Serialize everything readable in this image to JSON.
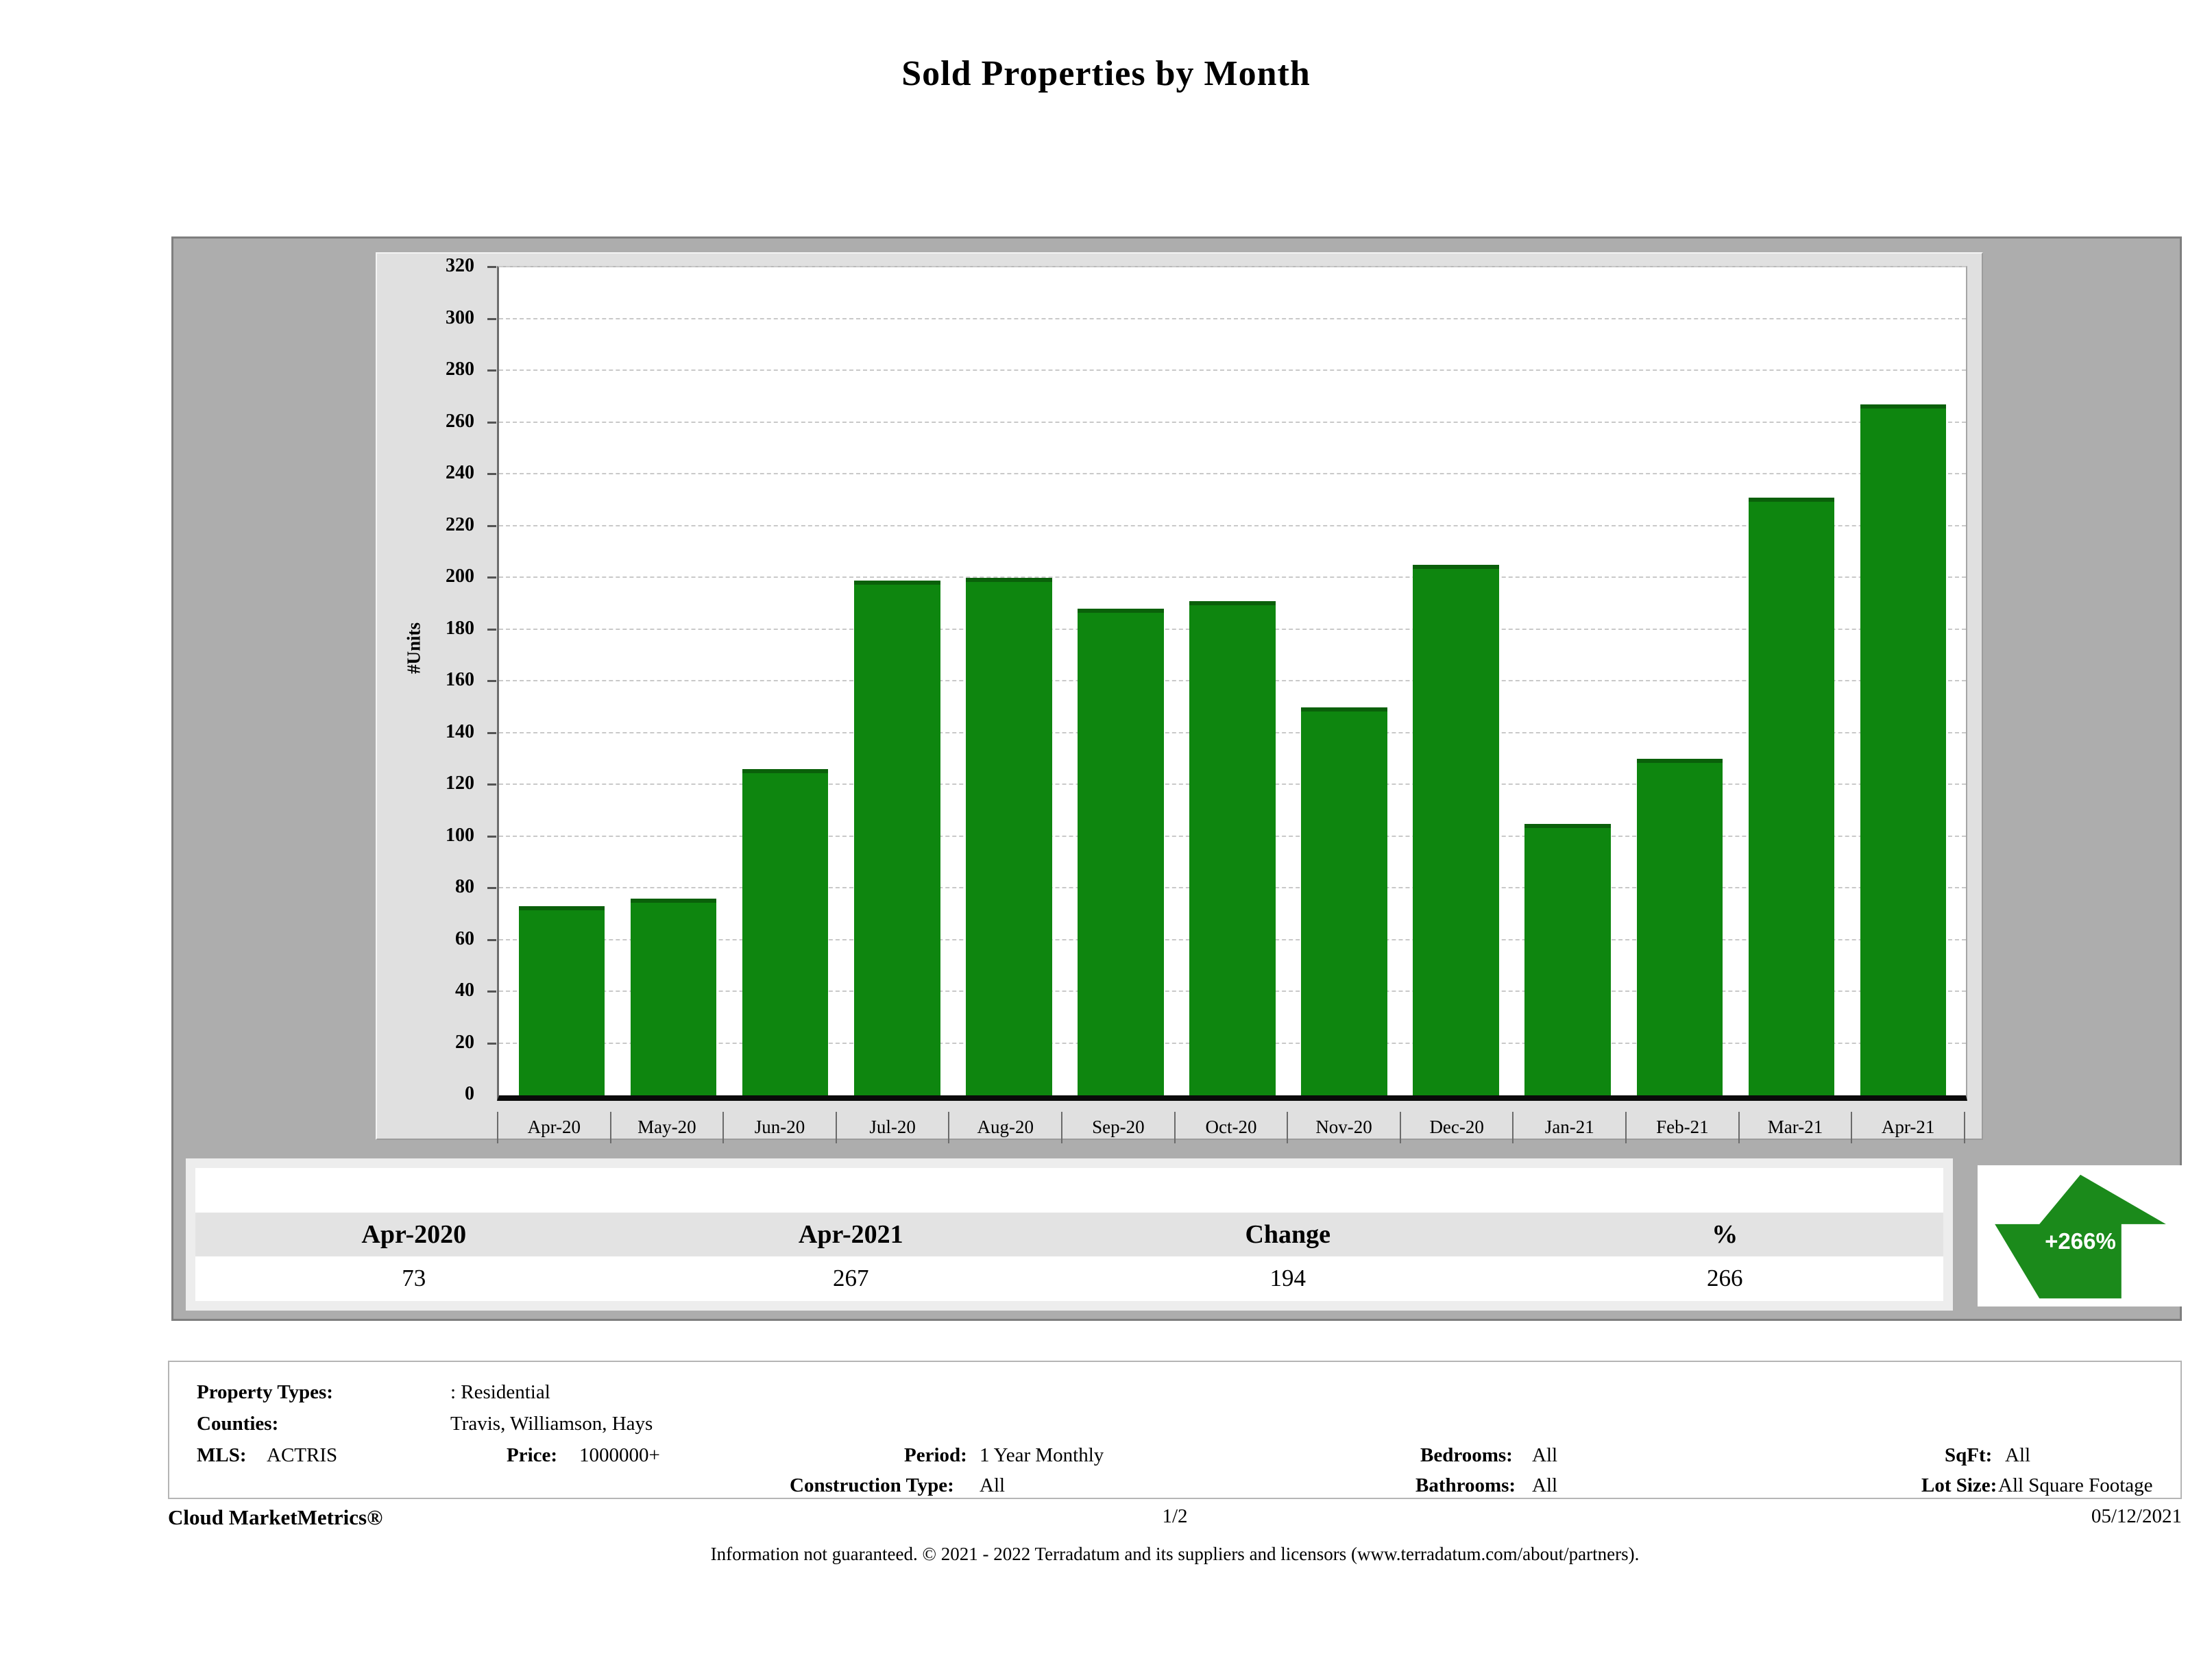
{
  "title": "Sold Properties by Month",
  "chart_data": {
    "type": "bar",
    "title": "Sold Properties by Month",
    "categories": [
      "Apr-20",
      "May-20",
      "Jun-20",
      "Jul-20",
      "Aug-20",
      "Sep-20",
      "Oct-20",
      "Nov-20",
      "Dec-20",
      "Jan-21",
      "Feb-21",
      "Mar-21",
      "Apr-21"
    ],
    "values": [
      73,
      76,
      126,
      199,
      200,
      188,
      191,
      150,
      205,
      105,
      130,
      231,
      267
    ],
    "xlabel": "",
    "ylabel": "#Units",
    "ylim": [
      0,
      320
    ],
    "yticks": [
      0,
      20,
      40,
      60,
      80,
      100,
      120,
      140,
      160,
      180,
      200,
      220,
      240,
      260,
      280,
      300,
      320
    ],
    "grid": true,
    "legend": "none",
    "bar_color": "#0e860f"
  },
  "summary_table": {
    "columns": [
      "Apr-2020",
      "Apr-2021",
      "Change",
      "%"
    ],
    "values": [
      "73",
      "267",
      "194",
      "266"
    ]
  },
  "change_indicator": {
    "label": "+266%",
    "direction": "up",
    "color": "#1b8a1b"
  },
  "filters": {
    "property_types_label": "Property Types:",
    "property_types": ": Residential",
    "counties_label": "Counties:",
    "counties": "Travis, Williamson, Hays",
    "mls_label": "MLS:",
    "mls": "ACTRIS",
    "price_label": "Price:",
    "price": "1000000+",
    "period_label": "Period:",
    "period": "1 Year Monthly",
    "construction_label": "Construction Type:",
    "construction": "All",
    "bedrooms_label": "Bedrooms:",
    "bedrooms": "All",
    "bathrooms_label": "Bathrooms:",
    "bathrooms": "All",
    "sqft_label": "SqFt:",
    "sqft": "All",
    "lot_size_label": "Lot Size:",
    "lot_size": "All Square Footage"
  },
  "footer": {
    "brand": "Cloud MarketMetrics®",
    "page": "1/2",
    "date": "05/12/2021",
    "disclaimer": "Information not guaranteed. © 2021 - 2022 Terradatum and its suppliers and licensors (www.terradatum.com/about/partners)."
  }
}
